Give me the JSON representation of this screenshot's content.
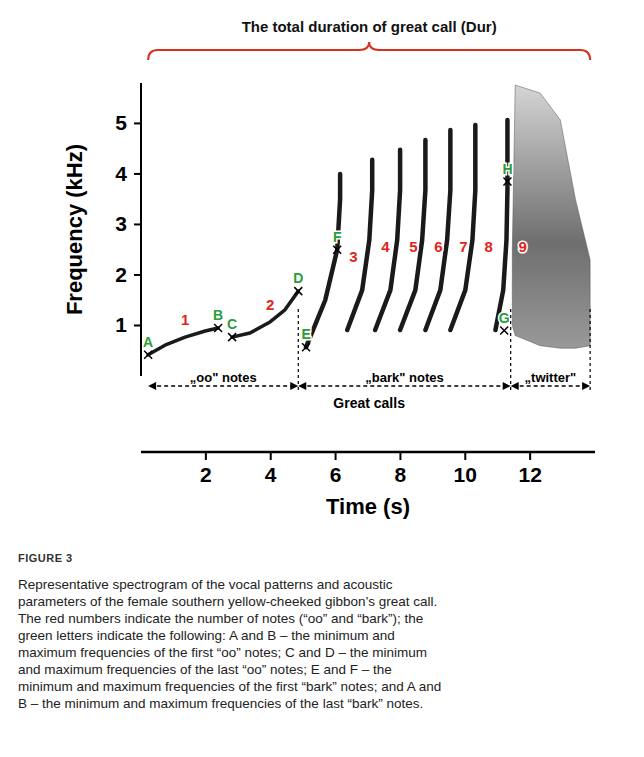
{
  "chart_data": {
    "type": "spectrogram",
    "title": "The total duration of great call (Dur)",
    "title_span": [
      0.22,
      13.85
    ],
    "x_label": "Time (s)",
    "y_label": "Frequency (kHz)",
    "xlim": [
      0,
      14
    ],
    "ylim": [
      0,
      5.8
    ],
    "xticks": [
      2,
      4,
      6,
      8,
      10,
      12
    ],
    "yticks": [
      1,
      2,
      3,
      4,
      5
    ],
    "grid": false,
    "series": [
      {
        "name": "1",
        "type": "line",
        "color": "#1a1a1a",
        "x": [
          0.22,
          0.74,
          1.36,
          1.98,
          2.38
        ],
        "values": [
          0.42,
          0.61,
          0.77,
          0.89,
          0.95
        ]
      },
      {
        "name": "2",
        "type": "line",
        "color": "#1a1a1a",
        "x": [
          2.81,
          3.36,
          3.98,
          4.44,
          4.85
        ],
        "values": [
          0.77,
          0.85,
          1.07,
          1.31,
          1.68
        ]
      },
      {
        "name": "3",
        "type": "line",
        "color": "#1a1a1a",
        "x": [
          5.09,
          5.68,
          6.05,
          6.14,
          6.14
        ],
        "values": [
          0.57,
          1.5,
          2.5,
          3.5,
          4.0
        ]
      },
      {
        "name": "4",
        "type": "line",
        "color": "#1a1a1a",
        "x": [
          6.36,
          6.82,
          7.04,
          7.13,
          7.13
        ],
        "values": [
          0.91,
          1.7,
          2.69,
          3.68,
          4.28
        ]
      },
      {
        "name": "5",
        "type": "line",
        "color": "#1a1a1a",
        "x": [
          7.22,
          7.69,
          7.9,
          7.99,
          7.99
        ],
        "values": [
          0.91,
          1.7,
          2.69,
          3.68,
          4.48
        ]
      },
      {
        "name": "6",
        "type": "line",
        "color": "#1a1a1a",
        "x": [
          7.99,
          8.46,
          8.67,
          8.77,
          8.77
        ],
        "values": [
          0.91,
          1.7,
          2.69,
          3.68,
          4.67
        ]
      },
      {
        "name": "7",
        "type": "line",
        "color": "#1a1a1a",
        "x": [
          8.77,
          9.23,
          9.44,
          9.54,
          9.54
        ],
        "values": [
          0.91,
          1.7,
          2.69,
          3.68,
          4.87
        ]
      },
      {
        "name": "8",
        "type": "line",
        "color": "#1a1a1a",
        "x": [
          9.54,
          10.0,
          10.22,
          10.31,
          10.31
        ],
        "values": [
          0.91,
          1.7,
          2.69,
          3.68,
          4.97
        ]
      },
      {
        "name": "9",
        "type": "line",
        "color": "#1a1a1a",
        "x": [
          10.93,
          11.17,
          11.27,
          11.3,
          11.3
        ],
        "values": [
          0.91,
          1.7,
          2.69,
          3.68,
          5.07
        ]
      },
      {
        "type": "area",
        "color": "#555555",
        "x": [
          11.45,
          11.54,
          12.31,
          12.93,
          13.4,
          13.85
        ],
        "values": [
          2.5,
          5.76,
          5.6,
          5.07,
          3.49,
          2.3
        ],
        "low": [
          1.0,
          0.8,
          0.6,
          0.55,
          0.55,
          0.6
        ]
      }
    ],
    "points": [
      {
        "label": "A",
        "x": 0.22,
        "y": 0.42
      },
      {
        "label": "B",
        "x": 2.38,
        "y": 0.95
      },
      {
        "label": "C",
        "x": 2.81,
        "y": 0.77
      },
      {
        "label": "D",
        "x": 4.85,
        "y": 1.68
      },
      {
        "label": "E",
        "x": 5.09,
        "y": 0.57
      },
      {
        "label": "F",
        "x": 6.05,
        "y": 2.5
      },
      {
        "label": "G",
        "x": 11.2,
        "y": 0.9
      },
      {
        "label": "H",
        "x": 11.3,
        "y": 3.85
      }
    ],
    "segments": [
      {
        "label": "„oo\" notes",
        "start": 0.22,
        "end": 4.85
      },
      {
        "label": "„bark\" notes",
        "start": 4.85,
        "end": 11.4
      },
      {
        "label": "„twitter\"",
        "start": 11.4,
        "end": 13.85
      }
    ],
    "segments_label": "Great calls"
  },
  "caption": {
    "label": "FIGURE 3",
    "text": "Representative spectrogram of the vocal patterns and acoustic parameters of the female southern yellow-cheeked gibbon’s great call. The red numbers indicate the number of notes (“oo” and “bark”); the green letters indicate the following: A and B – the minimum and maximum frequencies of the first “oo” notes; C and D – the minimum and maximum frequencies of the last “oo” notes; E and F – the minimum and maximum frequencies of the first “bark” notes; and A and B – the minimum and maximum frequencies of the last “bark” notes."
  }
}
